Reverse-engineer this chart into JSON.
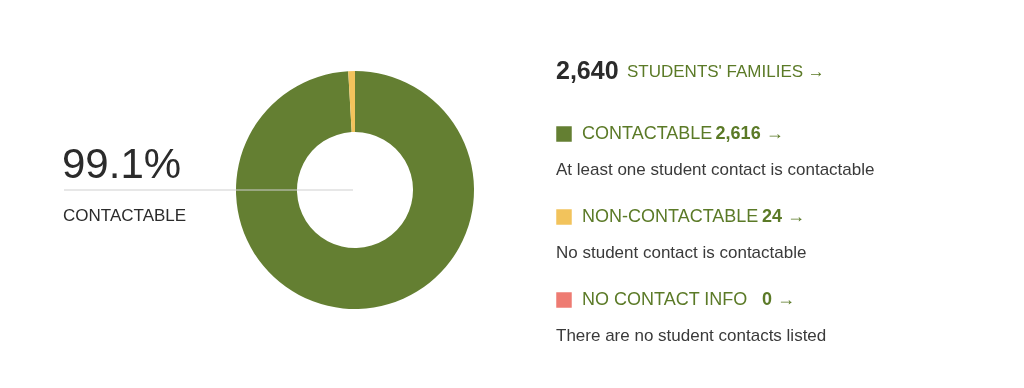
{
  "chart_data": {
    "type": "donut",
    "title": "2,640 STUDENTS' FAMILIES →",
    "categories": [
      "CONTACTABLE",
      "NON-CONTACTABLE",
      "NO CONTACT INFO"
    ],
    "values": [
      2616,
      24,
      0
    ],
    "value_labels": [
      "2,616 →",
      "24 →",
      "0 →"
    ],
    "colors": [
      "#647f32",
      "#f2c35c",
      "#ee7b72"
    ],
    "legend": "right",
    "annotations": [
      "99.1%",
      "CONTACTABLE",
      "At least one student contact is contactable",
      "No student contact is contactable",
      "There are no student contacts listed"
    ]
  }
}
